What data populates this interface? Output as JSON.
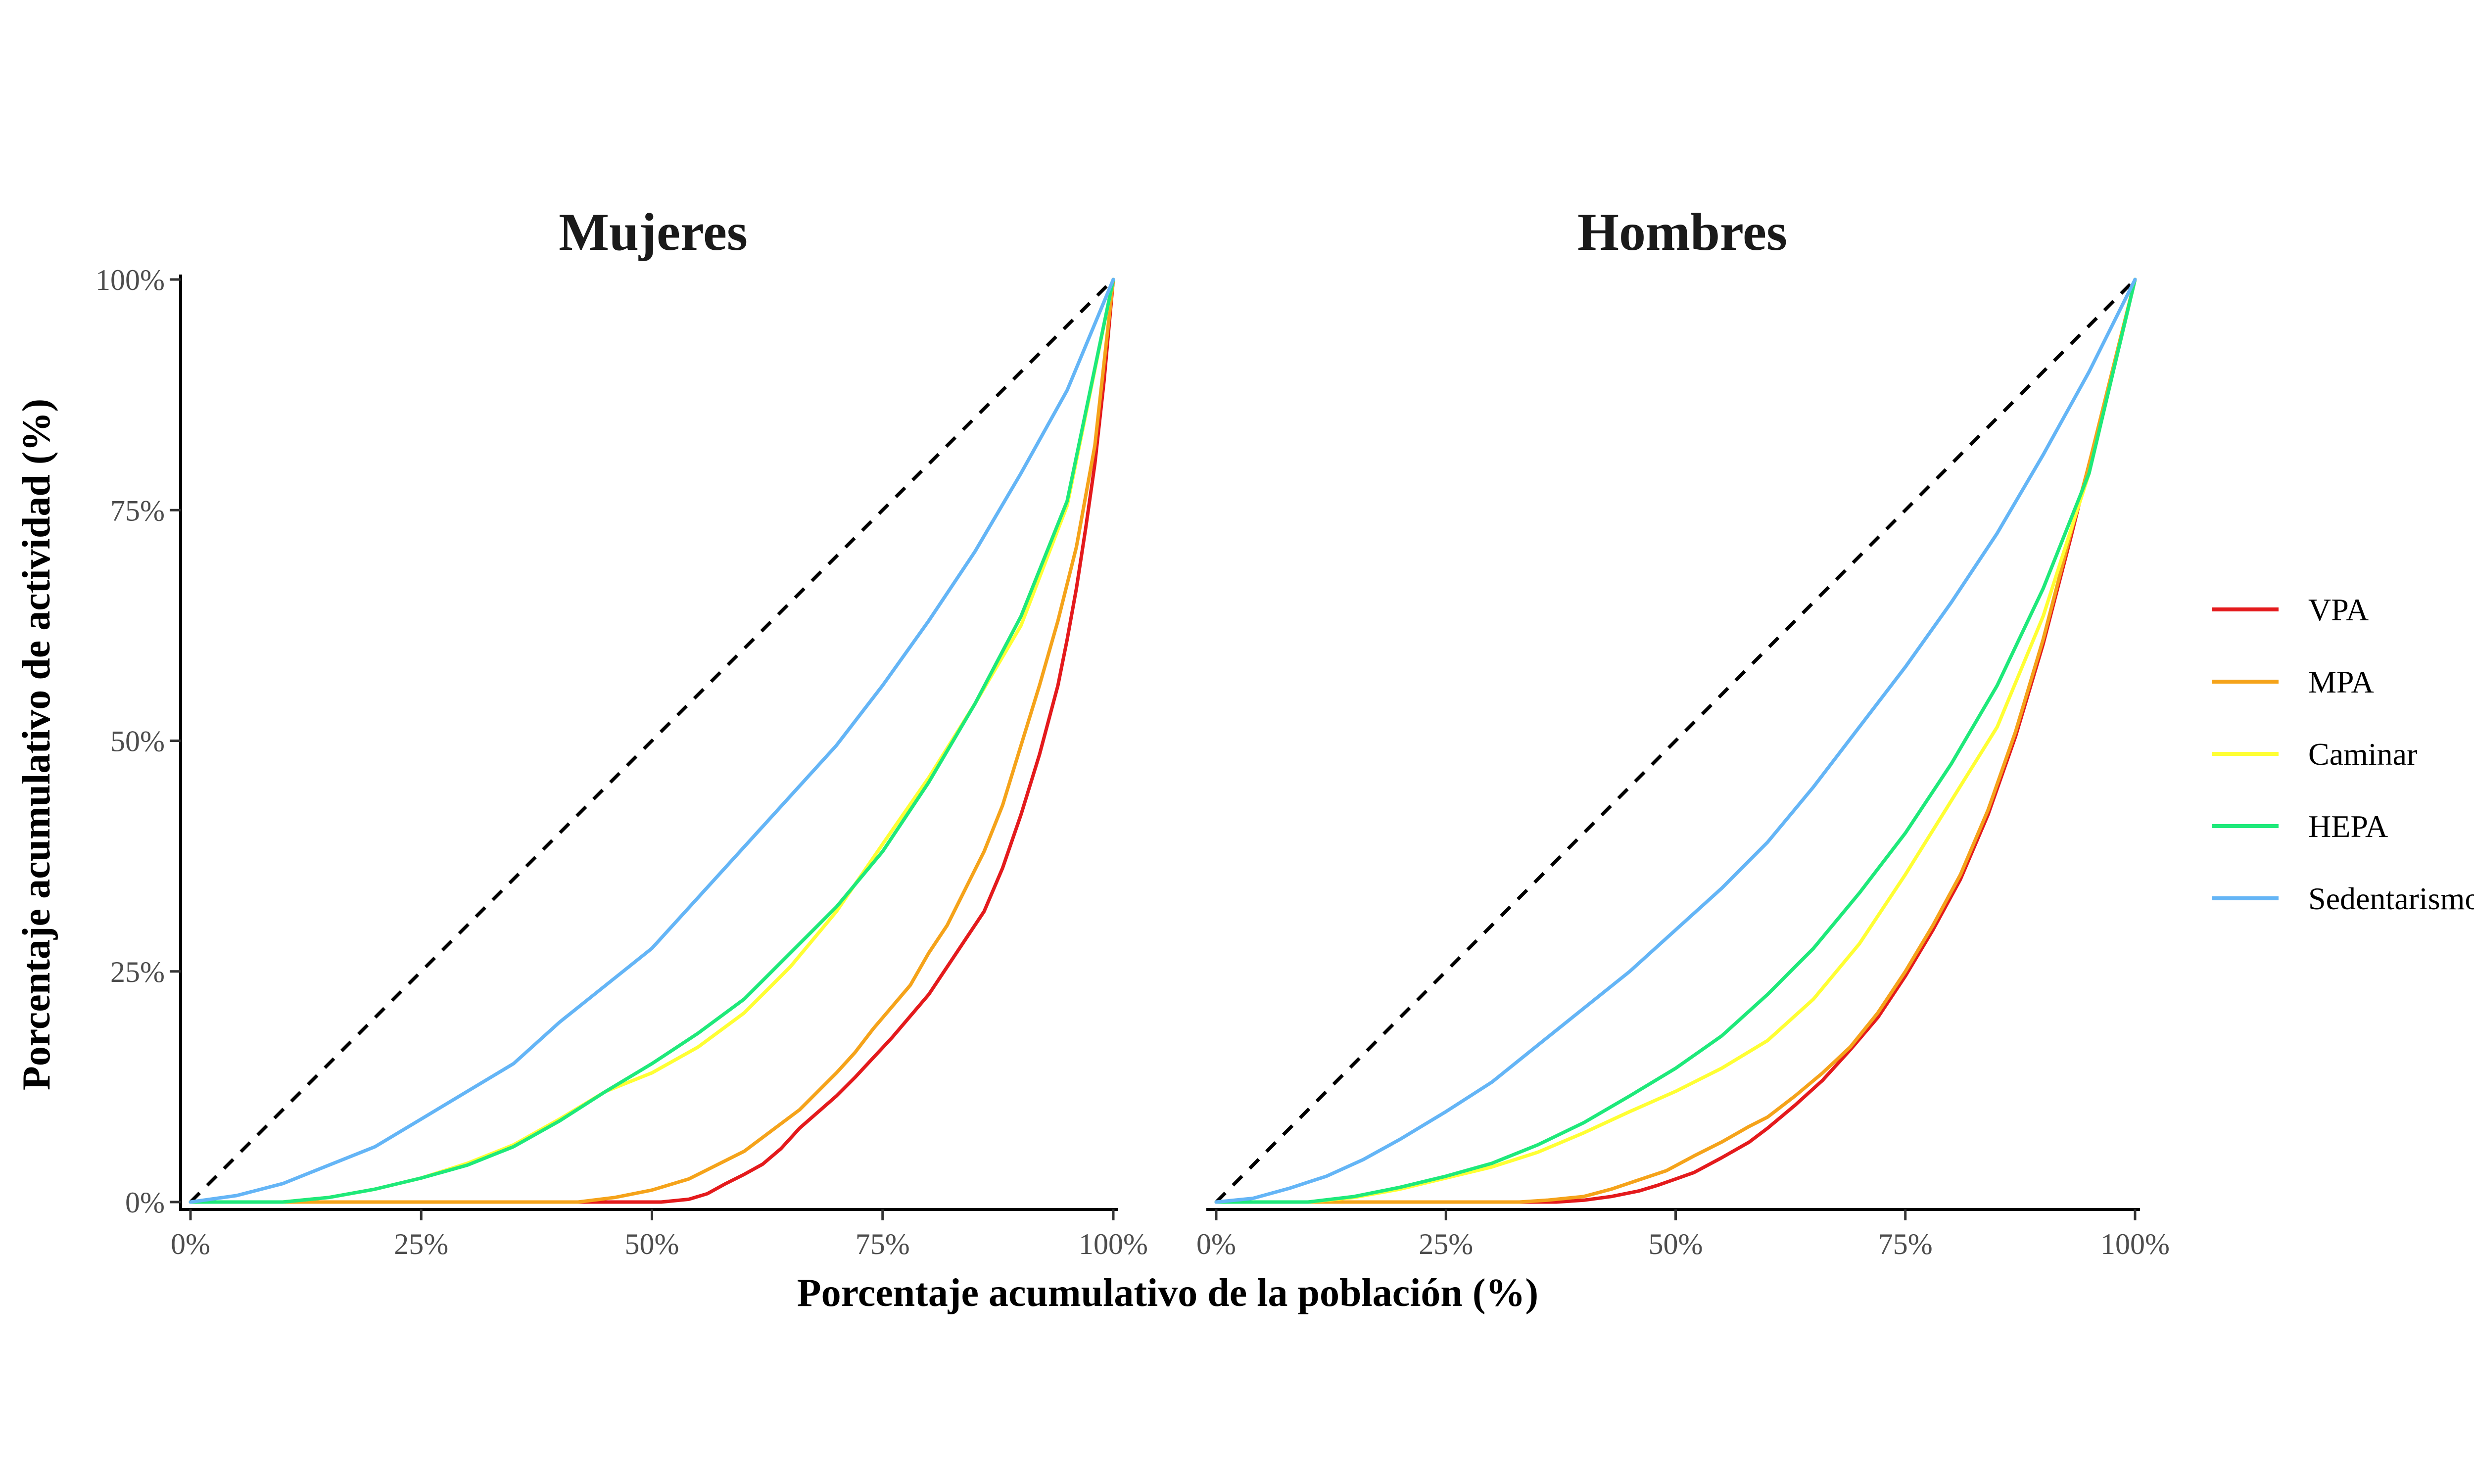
{
  "chart_data": {
    "type": "line",
    "xlabel": "Porcentaje acumulativo de la población (%)",
    "ylabel": "Porcentaje acumulativo de actividad (%)",
    "xlim": [
      0,
      100
    ],
    "ylim": [
      0,
      100
    ],
    "x_ticks": [
      "0%",
      "25%",
      "50%",
      "75%",
      "100%"
    ],
    "y_ticks": [
      "0%",
      "25%",
      "50%",
      "75%",
      "100%"
    ],
    "x_tick_values": [
      0,
      25,
      50,
      75,
      100
    ],
    "y_tick_values": [
      0,
      25,
      50,
      75,
      100
    ],
    "grid": false,
    "legend_position": "right",
    "reference_line": {
      "style": "dashed",
      "color": "#000000",
      "points": [
        [
          0,
          0
        ],
        [
          100,
          100
        ]
      ]
    },
    "legend": [
      {
        "name": "VPA",
        "color": "#e41a1c"
      },
      {
        "name": "MPA",
        "color": "#f5a31a"
      },
      {
        "name": "Caminar",
        "color": "#ffff33"
      },
      {
        "name": "HEPA",
        "color": "#1ee97a"
      },
      {
        "name": "Sedentarismo",
        "color": "#64b5f6"
      }
    ],
    "panels": [
      {
        "title": "Mujeres",
        "series": [
          {
            "name": "VPA",
            "color": "#e41a1c",
            "points": [
              [
                0,
                0
              ],
              [
                51,
                0
              ],
              [
                54,
                0.3
              ],
              [
                56,
                0.9
              ],
              [
                58,
                2
              ],
              [
                60,
                3
              ],
              [
                62,
                4.1
              ],
              [
                64,
                5.8
              ],
              [
                66,
                8
              ],
              [
                70,
                11.5
              ],
              [
                72,
                13.5
              ],
              [
                76,
                17.8
              ],
              [
                80,
                22.5
              ],
              [
                82,
                25.5
              ],
              [
                86,
                31.5
              ],
              [
                88,
                36.2
              ],
              [
                90,
                42
              ],
              [
                92,
                48.5
              ],
              [
                94,
                56
              ],
              [
                95,
                61
              ],
              [
                96,
                66.5
              ],
              [
                97,
                73
              ],
              [
                98,
                80
              ],
              [
                99,
                89
              ],
              [
                100,
                100
              ]
            ]
          },
          {
            "name": "MPA",
            "color": "#f5a31a",
            "points": [
              [
                0,
                0
              ],
              [
                42,
                0
              ],
              [
                46,
                0.5
              ],
              [
                50,
                1.3
              ],
              [
                54,
                2.5
              ],
              [
                56,
                3.5
              ],
              [
                60,
                5.5
              ],
              [
                62,
                7
              ],
              [
                66,
                10
              ],
              [
                70,
                14
              ],
              [
                72,
                16.2
              ],
              [
                74,
                18.8
              ],
              [
                78,
                23.5
              ],
              [
                80,
                27
              ],
              [
                82,
                30
              ],
              [
                86,
                38
              ],
              [
                88,
                43
              ],
              [
                90,
                49.5
              ],
              [
                92,
                56
              ],
              [
                94,
                63
              ],
              [
                96,
                71
              ],
              [
                98,
                82
              ],
              [
                100,
                100
              ]
            ]
          },
          {
            "name": "Caminar",
            "color": "#ffff33",
            "points": [
              [
                0,
                0
              ],
              [
                10,
                0
              ],
              [
                15,
                0.5
              ],
              [
                20,
                1.4
              ],
              [
                25,
                2.6
              ],
              [
                30,
                4.2
              ],
              [
                35,
                6.2
              ],
              [
                40,
                9
              ],
              [
                45,
                12
              ],
              [
                50,
                14
              ],
              [
                55,
                16.8
              ],
              [
                60,
                20.5
              ],
              [
                65,
                25.5
              ],
              [
                70,
                31.5
              ],
              [
                75,
                38.8
              ],
              [
                80,
                46
              ],
              [
                85,
                54
              ],
              [
                90,
                62.5
              ],
              [
                95,
                75.5
              ],
              [
                100,
                100
              ]
            ]
          },
          {
            "name": "HEPA",
            "color": "#1ee97a",
            "points": [
              [
                0,
                0
              ],
              [
                10,
                0
              ],
              [
                15,
                0.5
              ],
              [
                20,
                1.4
              ],
              [
                25,
                2.6
              ],
              [
                30,
                4
              ],
              [
                35,
                6
              ],
              [
                40,
                8.8
              ],
              [
                45,
                12
              ],
              [
                50,
                15
              ],
              [
                55,
                18.3
              ],
              [
                60,
                22
              ],
              [
                65,
                27
              ],
              [
                70,
                32
              ],
              [
                75,
                38
              ],
              [
                80,
                45.5
              ],
              [
                85,
                54
              ],
              [
                90,
                63.5
              ],
              [
                95,
                76
              ],
              [
                100,
                100
              ]
            ]
          },
          {
            "name": "Sedentarismo",
            "color": "#64b5f6",
            "points": [
              [
                0,
                0
              ],
              [
                5,
                0.7
              ],
              [
                10,
                2
              ],
              [
                15,
                4
              ],
              [
                20,
                6
              ],
              [
                25,
                9
              ],
              [
                30,
                12
              ],
              [
                35,
                15
              ],
              [
                40,
                19.5
              ],
              [
                45,
                23.5
              ],
              [
                50,
                27.5
              ],
              [
                55,
                33
              ],
              [
                60,
                38.5
              ],
              [
                65,
                44
              ],
              [
                70,
                49.5
              ],
              [
                75,
                56
              ],
              [
                80,
                63
              ],
              [
                85,
                70.5
              ],
              [
                90,
                79
              ],
              [
                95,
                88
              ],
              [
                100,
                100
              ]
            ]
          }
        ]
      },
      {
        "title": "Hombres",
        "series": [
          {
            "name": "VPA",
            "color": "#e41a1c",
            "points": [
              [
                0,
                0
              ],
              [
                37,
                0
              ],
              [
                40,
                0.2
              ],
              [
                43,
                0.6
              ],
              [
                46,
                1.2
              ],
              [
                48,
                1.8
              ],
              [
                50,
                2.5
              ],
              [
                52,
                3.2
              ],
              [
                55,
                4.8
              ],
              [
                58,
                6.5
              ],
              [
                60,
                8
              ],
              [
                63,
                10.5
              ],
              [
                66,
                13.2
              ],
              [
                69,
                16.5
              ],
              [
                72,
                20
              ],
              [
                75,
                24.5
              ],
              [
                78,
                29.5
              ],
              [
                81,
                35
              ],
              [
                84,
                42
              ],
              [
                87,
                50.5
              ],
              [
                90,
                60.5
              ],
              [
                93,
                72
              ],
              [
                95,
                80
              ],
              [
                97,
                87.5
              ],
              [
                100,
                100
              ]
            ]
          },
          {
            "name": "MPA",
            "color": "#f5a31a",
            "points": [
              [
                0,
                0
              ],
              [
                33,
                0
              ],
              [
                36,
                0.2
              ],
              [
                40,
                0.6
              ],
              [
                43,
                1.4
              ],
              [
                46,
                2.4
              ],
              [
                49,
                3.4
              ],
              [
                52,
                5
              ],
              [
                55,
                6.5
              ],
              [
                58,
                8.2
              ],
              [
                60,
                9.2
              ],
              [
                63,
                11.5
              ],
              [
                66,
                14
              ],
              [
                69,
                16.8
              ],
              [
                72,
                20.5
              ],
              [
                75,
                25
              ],
              [
                78,
                30
              ],
              [
                81,
                35.5
              ],
              [
                84,
                42.5
              ],
              [
                87,
                51
              ],
              [
                90,
                61
              ],
              [
                93,
                72.5
              ],
              [
                95,
                80
              ],
              [
                97,
                88
              ],
              [
                100,
                100
              ]
            ]
          },
          {
            "name": "Caminar",
            "color": "#ffff33",
            "points": [
              [
                0,
                0
              ],
              [
                10,
                0
              ],
              [
                15,
                0.5
              ],
              [
                20,
                1.4
              ],
              [
                25,
                2.6
              ],
              [
                30,
                3.8
              ],
              [
                35,
                5.4
              ],
              [
                40,
                7.5
              ],
              [
                45,
                9.8
              ],
              [
                50,
                12
              ],
              [
                55,
                14.5
              ],
              [
                60,
                17.5
              ],
              [
                65,
                22
              ],
              [
                70,
                28
              ],
              [
                75,
                35.5
              ],
              [
                80,
                43.5
              ],
              [
                85,
                51.5
              ],
              [
                90,
                63.5
              ],
              [
                95,
                79
              ],
              [
                100,
                100
              ]
            ]
          },
          {
            "name": "HEPA",
            "color": "#1ee97a",
            "points": [
              [
                0,
                0
              ],
              [
                10,
                0
              ],
              [
                15,
                0.6
              ],
              [
                20,
                1.6
              ],
              [
                25,
                2.8
              ],
              [
                30,
                4.2
              ],
              [
                35,
                6.2
              ],
              [
                40,
                8.6
              ],
              [
                45,
                11.5
              ],
              [
                50,
                14.5
              ],
              [
                55,
                18
              ],
              [
                60,
                22.5
              ],
              [
                65,
                27.5
              ],
              [
                70,
                33.5
              ],
              [
                75,
                40
              ],
              [
                80,
                47.5
              ],
              [
                85,
                56
              ],
              [
                90,
                66.5
              ],
              [
                95,
                79
              ],
              [
                100,
                100
              ]
            ]
          },
          {
            "name": "Sedentarismo",
            "color": "#64b5f6",
            "points": [
              [
                0,
                0
              ],
              [
                4,
                0.4
              ],
              [
                8,
                1.5
              ],
              [
                12,
                2.8
              ],
              [
                16,
                4.6
              ],
              [
                20,
                6.8
              ],
              [
                25,
                9.8
              ],
              [
                30,
                13
              ],
              [
                35,
                17
              ],
              [
                40,
                21
              ],
              [
                45,
                25
              ],
              [
                50,
                29.5
              ],
              [
                55,
                34
              ],
              [
                60,
                39
              ],
              [
                65,
                45
              ],
              [
                70,
                51.5
              ],
              [
                75,
                58
              ],
              [
                80,
                65
              ],
              [
                85,
                72.5
              ],
              [
                90,
                81
              ],
              [
                95,
                90
              ],
              [
                100,
                100
              ]
            ]
          }
        ]
      }
    ]
  }
}
